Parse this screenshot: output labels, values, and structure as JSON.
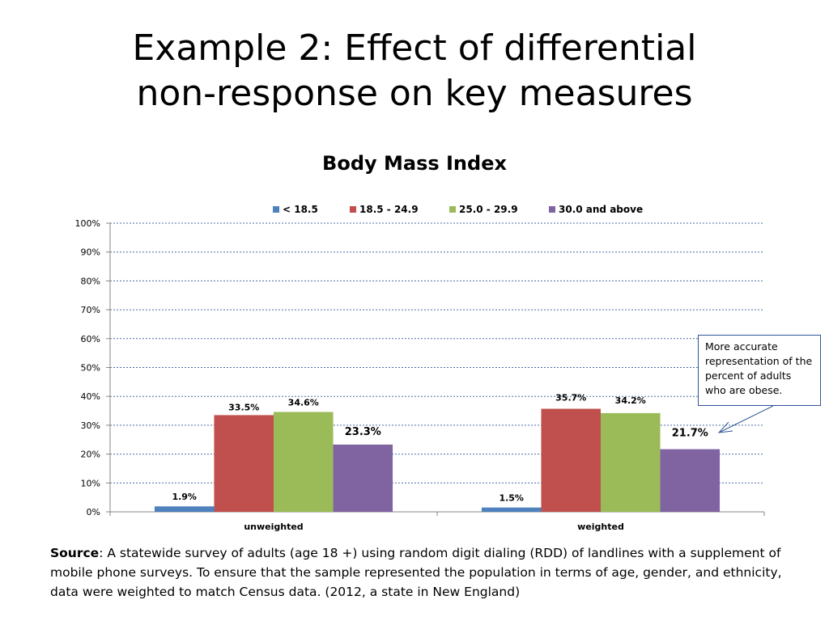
{
  "slide": {
    "title_line1": "Example 2: Effect of differential",
    "title_line2": "non-response on key measures"
  },
  "chart_data": {
    "type": "bar",
    "title": "Body Mass Index",
    "categories": [
      "unweighted",
      "weighted"
    ],
    "series": [
      {
        "name": "< 18.5",
        "color": "#4f81bd",
        "values": [
          1.9,
          1.5
        ],
        "labels": [
          "1.9%",
          "1.5%"
        ]
      },
      {
        "name": "18.5 - 24.9",
        "color": "#c0504d",
        "values": [
          33.5,
          35.7
        ],
        "labels": [
          "33.5%",
          "35.7%"
        ]
      },
      {
        "name": "25.0 - 29.9",
        "color": "#9bbb59",
        "values": [
          34.6,
          34.2
        ],
        "labels": [
          "34.6%",
          "34.2%"
        ]
      },
      {
        "name": "30.0 and above",
        "color": "#8064a2",
        "values": [
          23.3,
          21.7
        ],
        "labels": [
          "23.3%",
          "21.7%"
        ]
      }
    ],
    "y_ticks": [
      "0%",
      "10%",
      "20%",
      "30%",
      "40%",
      "50%",
      "60%",
      "70%",
      "80%",
      "90%",
      "100%"
    ],
    "ylim": [
      0,
      100
    ],
    "grid": true,
    "legend_position": "top",
    "xlabel": "",
    "ylabel": ""
  },
  "callout": {
    "text": "More accurate representation of the percent of adults who are obese."
  },
  "source": {
    "label": "Source",
    "text": ": A statewide survey of adults (age 18 +) using random digit dialing (RDD) of landlines with a supplement of mobile phone surveys. To ensure that the sample represented the population in terms of age, gender, and ethnicity, data were weighted to match Census data. (2012, a state in New England)"
  }
}
